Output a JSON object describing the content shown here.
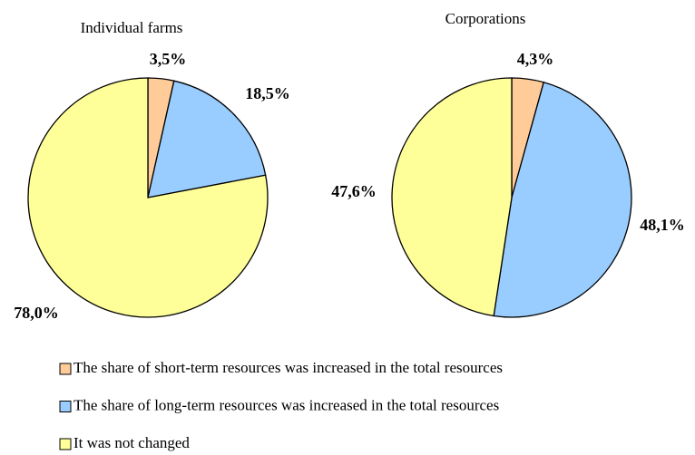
{
  "chart_data": [
    {
      "type": "pie",
      "title": "Individual farms",
      "categories": [
        "The share of short-term resources was increased in the total resources",
        "The share of long-term resources was increased in the total resources",
        "It was not changed"
      ],
      "values": [
        3.5,
        18.5,
        78.0
      ],
      "value_labels": [
        "3,5%",
        "18,5%",
        "78,0%"
      ],
      "colors": [
        "#ffcc99",
        "#99ccff",
        "#ffff99"
      ]
    },
    {
      "type": "pie",
      "title": "Corporations",
      "categories": [
        "The share of short-term resources was increased in the total resources",
        "The share of long-term resources was increased in the total resources",
        "It was not changed"
      ],
      "values": [
        4.3,
        48.1,
        47.6
      ],
      "value_labels": [
        "4,3%",
        "48,1%",
        "47,6%"
      ],
      "colors": [
        "#ffcc99",
        "#99ccff",
        "#ffff99"
      ]
    }
  ]
}
